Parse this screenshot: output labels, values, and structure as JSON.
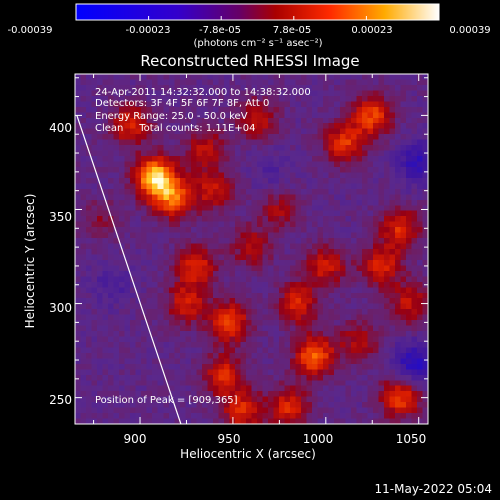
{
  "colorbar": {
    "tick_labels": [
      "-0.00039",
      "-0.00023",
      "-7.8e-05",
      "7.8e-05",
      "0.00023",
      "0.00039"
    ],
    "units_text": "(photons cm⁻² s⁻¹ asec⁻²)",
    "range": [
      -0.00039,
      0.00039
    ]
  },
  "annotations": {
    "time_range": "24-Apr-2011 14:32:32.000 to 14:38:32.000",
    "detectors": "Detectors: 3F 4F 5F 6F 7F 8F, Att 0",
    "energy_range": "Energy Range: 25.0 - 50.0 keV",
    "clean_counts": "Clean     Total counts: 1.11E+04",
    "peak_position": "Position of Peak = [909,365]"
  },
  "footer": {
    "date": "11-May-2022 05:04"
  },
  "colors": {
    "background": "#000000",
    "limb_line": "#ffffff",
    "colormap": "black-blue-purple-red-orange-yellow-white"
  },
  "chart_data": {
    "type": "heatmap",
    "title": "Reconstructed RHESSI Image",
    "xlabel": "Heliocentric X (arcsec)",
    "ylabel": "Heliocentric Y (arcsec)",
    "xlim": [
      865,
      1055
    ],
    "ylim": [
      236,
      422
    ],
    "x_ticks": [
      900,
      950,
      1000,
      1050
    ],
    "y_ticks": [
      250,
      300,
      350,
      400
    ],
    "peak": [
      909,
      365
    ],
    "limb_line_points": [
      [
        866,
        400
      ],
      [
        922,
        236
      ]
    ],
    "grid": false,
    "legend": "colorbar-top",
    "blobs": [
      {
        "x": 908,
        "y": 367,
        "amp": 1.0
      },
      {
        "x": 918,
        "y": 356,
        "amp": 0.7
      },
      {
        "x": 895,
        "y": 395,
        "amp": 0.55
      },
      {
        "x": 935,
        "y": 382,
        "amp": 0.45
      },
      {
        "x": 963,
        "y": 398,
        "amp": 0.45
      },
      {
        "x": 940,
        "y": 360,
        "amp": 0.45
      },
      {
        "x": 930,
        "y": 320,
        "amp": 0.55
      },
      {
        "x": 948,
        "y": 290,
        "amp": 0.65
      },
      {
        "x": 945,
        "y": 262,
        "amp": 0.55
      },
      {
        "x": 925,
        "y": 300,
        "amp": 0.5
      },
      {
        "x": 985,
        "y": 300,
        "amp": 0.55
      },
      {
        "x": 994,
        "y": 272,
        "amp": 0.75
      },
      {
        "x": 980,
        "y": 245,
        "amp": 0.55
      },
      {
        "x": 1000,
        "y": 320,
        "amp": 0.5
      },
      {
        "x": 1010,
        "y": 385,
        "amp": 0.6
      },
      {
        "x": 1025,
        "y": 400,
        "amp": 0.65
      },
      {
        "x": 1030,
        "y": 320,
        "amp": 0.55
      },
      {
        "x": 1040,
        "y": 340,
        "amp": 0.55
      },
      {
        "x": 1045,
        "y": 300,
        "amp": 0.45
      },
      {
        "x": 1040,
        "y": 250,
        "amp": 0.65
      },
      {
        "x": 960,
        "y": 330,
        "amp": 0.4
      },
      {
        "x": 975,
        "y": 350,
        "amp": 0.35
      },
      {
        "x": 1018,
        "y": 280,
        "amp": 0.4
      },
      {
        "x": 880,
        "y": 345,
        "amp": 0.25
      },
      {
        "x": 955,
        "y": 243,
        "amp": 0.55
      },
      {
        "x": 1050,
        "y": 375,
        "amp": -0.45
      },
      {
        "x": 1048,
        "y": 268,
        "amp": -0.55
      },
      {
        "x": 885,
        "y": 310,
        "amp": -0.2
      },
      {
        "x": 970,
        "y": 370,
        "amp": -0.15
      }
    ]
  }
}
